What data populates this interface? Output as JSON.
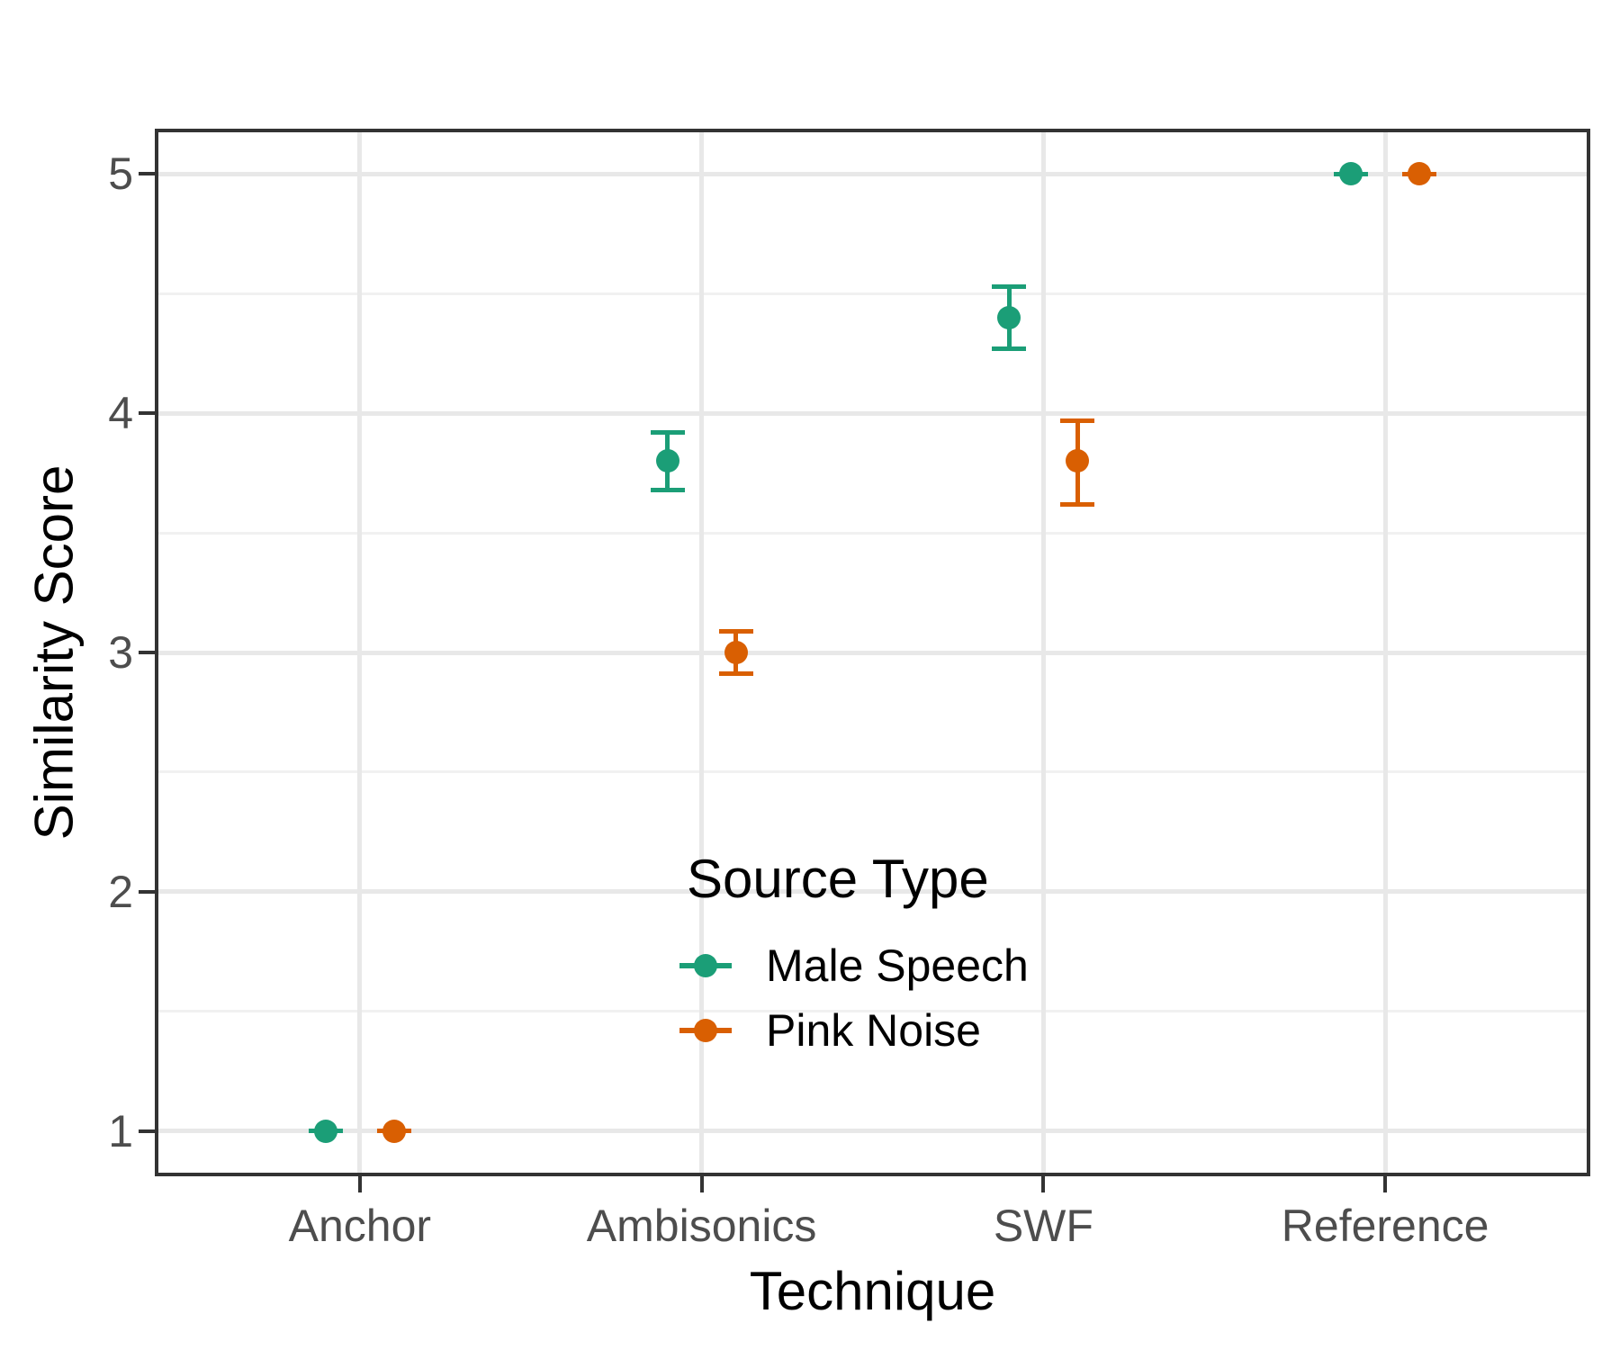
{
  "chart_data": {
    "type": "pointrange-scatter-with-errorbars",
    "title": "",
    "xlabel": "Technique",
    "ylabel": "Similarity Score",
    "categories": [
      "Anchor",
      "Ambisonics",
      "SWF",
      "Reference"
    ],
    "y_ticks": [
      1,
      2,
      3,
      4,
      5
    ],
    "y_minor_ticks": [
      1.5,
      2.5,
      3.5,
      4.5
    ],
    "ylim": [
      0.81,
      5.19
    ],
    "grid": {
      "horizontal_major": true,
      "horizontal_minor": true,
      "vertical_major": true
    },
    "legend": {
      "title": "Source Type",
      "position": "inside bottom-center"
    },
    "series": [
      {
        "name": "Male Speech",
        "color": "#1B9E77",
        "values": [
          {
            "category": "Anchor",
            "mean": 1.0,
            "lo": 1.0,
            "hi": 1.0
          },
          {
            "category": "Ambisonics",
            "mean": 3.8,
            "lo": 3.68,
            "hi": 3.92
          },
          {
            "category": "SWF",
            "mean": 4.4,
            "lo": 4.27,
            "hi": 4.53
          },
          {
            "category": "Reference",
            "mean": 5.0,
            "lo": 5.0,
            "hi": 5.0
          }
        ]
      },
      {
        "name": "Pink Noise",
        "color": "#D95F02",
        "values": [
          {
            "category": "Anchor",
            "mean": 1.0,
            "lo": 1.0,
            "hi": 1.0
          },
          {
            "category": "Ambisonics",
            "mean": 3.0,
            "lo": 2.91,
            "hi": 3.09
          },
          {
            "category": "SWF",
            "mean": 3.8,
            "lo": 3.62,
            "hi": 3.97
          },
          {
            "category": "Reference",
            "mean": 5.0,
            "lo": 5.0,
            "hi": 5.0
          }
        ]
      }
    ],
    "style_colors": {
      "grid_major": "#E8E8E8",
      "grid_minor": "#F1F1F1",
      "panel_border": "#333333",
      "tick_mark": "#333333",
      "tick_label": "#4D4D4D",
      "title_text": "#000000"
    }
  }
}
